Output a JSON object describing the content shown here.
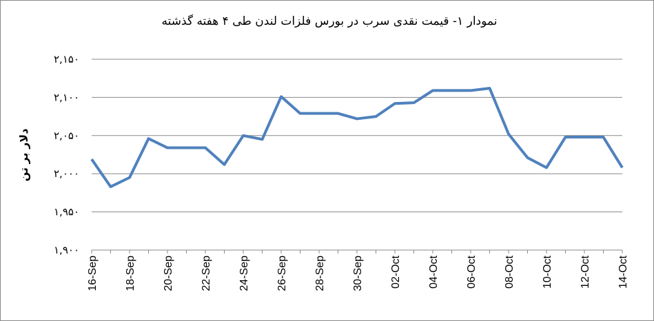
{
  "chart_data": {
    "type": "line",
    "title": "نمودار ۱- قیمت نقدی سرب  در بورس فلزات لندن طی ۴ هفته گذشته",
    "y_label": "دلار بر تن",
    "categories": [
      "16-Sep",
      null,
      "18-Sep",
      null,
      "20-Sep",
      null,
      "22-Sep",
      null,
      "24-Sep",
      null,
      "26-Sep",
      null,
      "28-Sep",
      null,
      "30-Sep",
      null,
      "02-Oct",
      null,
      "04-Oct",
      null,
      "06-Oct",
      null,
      "08-Oct",
      null,
      "10-Oct",
      null,
      "12-Oct",
      null,
      "14-Oct"
    ],
    "series": [
      {
        "name": "سرب",
        "color": "#4f81bd",
        "values": [
          2019,
          1983,
          1995,
          2046,
          2034,
          2034,
          2034,
          2012,
          2050,
          2045,
          2101,
          2079,
          2079,
          2079,
          2072,
          2075,
          2092,
          2093,
          2109,
          2109,
          2109,
          2112,
          2052,
          2021,
          2008,
          2048,
          2048,
          2048,
          2008
        ]
      }
    ],
    "ylim": [
      1900,
      2150
    ],
    "yticks": [
      {
        "value": 1900,
        "label": "۱,۹۰۰"
      },
      {
        "value": 1950,
        "label": "۱,۹۵۰"
      },
      {
        "value": 2000,
        "label": "۲,۰۰۰"
      },
      {
        "value": 2050,
        "label": "۲,۰۵۰"
      },
      {
        "value": 2100,
        "label": "۲,۱۰۰"
      },
      {
        "value": 2150,
        "label": "۲,۱۵۰"
      }
    ],
    "grid": true
  }
}
